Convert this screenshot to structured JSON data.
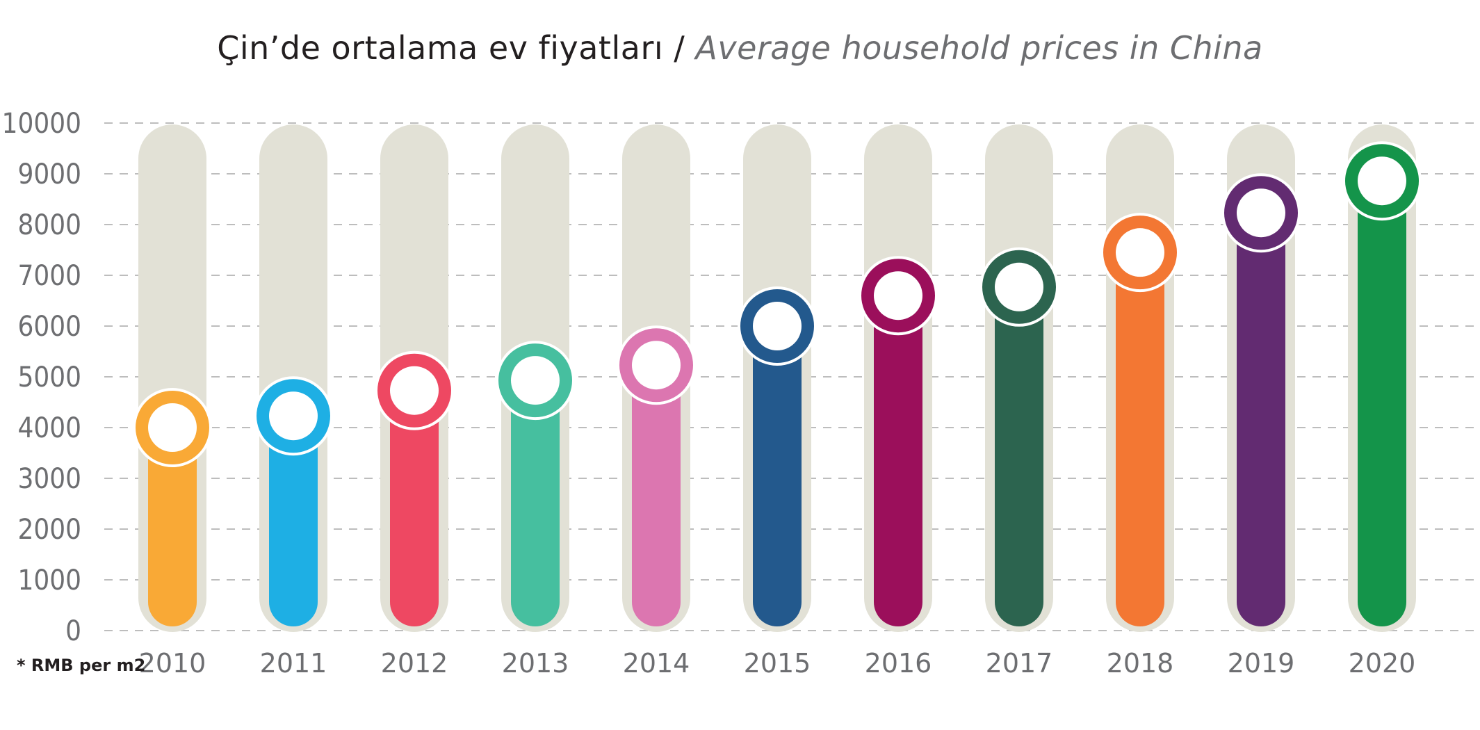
{
  "chart_data": {
    "type": "bar",
    "title": "Çin’de ortalama ev fiyatları",
    "subtitle": "Average household prices in China",
    "title_separator": "/",
    "xlabel": "",
    "ylabel": "",
    "unit_note": "* RMB per m2",
    "ylim": [
      0,
      10000
    ],
    "yticks": [
      "0",
      "1000",
      "2000",
      "3000",
      "4000",
      "5000",
      "6000",
      "7000",
      "8000",
      "9000",
      "10000"
    ],
    "grid": true,
    "legend": "none",
    "categories": [
      "2010",
      "2011",
      "2012",
      "2013",
      "2014",
      "2015",
      "2016",
      "2017",
      "2018",
      "2019",
      "2020"
    ],
    "values": [
      4000,
      4230,
      4730,
      4930,
      5230,
      6000,
      6600,
      6770,
      7450,
      8230,
      8860
    ],
    "colors": [
      "#f9a936",
      "#1eafe4",
      "#ee4862",
      "#46bf9f",
      "#dc76b0",
      "#23598d",
      "#9b0f5b",
      "#2c644f",
      "#f37733",
      "#622b71",
      "#14944a"
    ],
    "track_color": "#e2e1d6",
    "grid_color": "#bdbdbd"
  }
}
